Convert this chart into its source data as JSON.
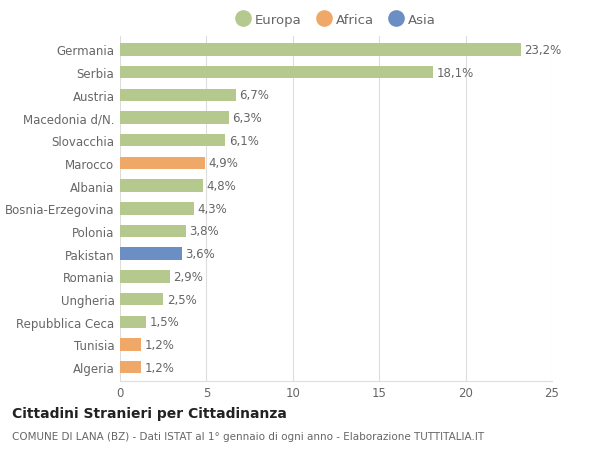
{
  "countries": [
    "Germania",
    "Serbia",
    "Austria",
    "Macedonia d/N.",
    "Slovacchia",
    "Marocco",
    "Albania",
    "Bosnia-Erzegovina",
    "Polonia",
    "Pakistan",
    "Romania",
    "Ungheria",
    "Repubblica Ceca",
    "Tunisia",
    "Algeria"
  ],
  "values": [
    23.2,
    18.1,
    6.7,
    6.3,
    6.1,
    4.9,
    4.8,
    4.3,
    3.8,
    3.6,
    2.9,
    2.5,
    1.5,
    1.2,
    1.2
  ],
  "labels": [
    "23,2%",
    "18,1%",
    "6,7%",
    "6,3%",
    "6,1%",
    "4,9%",
    "4,8%",
    "4,3%",
    "3,8%",
    "3,6%",
    "2,9%",
    "2,5%",
    "1,5%",
    "1,2%",
    "1,2%"
  ],
  "continents": [
    "Europa",
    "Europa",
    "Europa",
    "Europa",
    "Europa",
    "Africa",
    "Europa",
    "Europa",
    "Europa",
    "Asia",
    "Europa",
    "Europa",
    "Europa",
    "Africa",
    "Africa"
  ],
  "colors": {
    "Europa": "#b5c98e",
    "Africa": "#f0a868",
    "Asia": "#6b8fc4"
  },
  "legend": [
    "Europa",
    "Africa",
    "Asia"
  ],
  "title": "Cittadini Stranieri per Cittadinanza",
  "subtitle": "COMUNE DI LANA (BZ) - Dati ISTAT al 1° gennaio di ogni anno - Elaborazione TUTTITALIA.IT",
  "xlim": [
    0,
    25
  ],
  "xticks": [
    0,
    5,
    10,
    15,
    20,
    25
  ],
  "bg_color": "#ffffff",
  "grid_color": "#dddddd",
  "bar_height": 0.55,
  "label_fontsize": 8.5,
  "tick_fontsize": 8.5,
  "title_fontsize": 10,
  "subtitle_fontsize": 7.5
}
